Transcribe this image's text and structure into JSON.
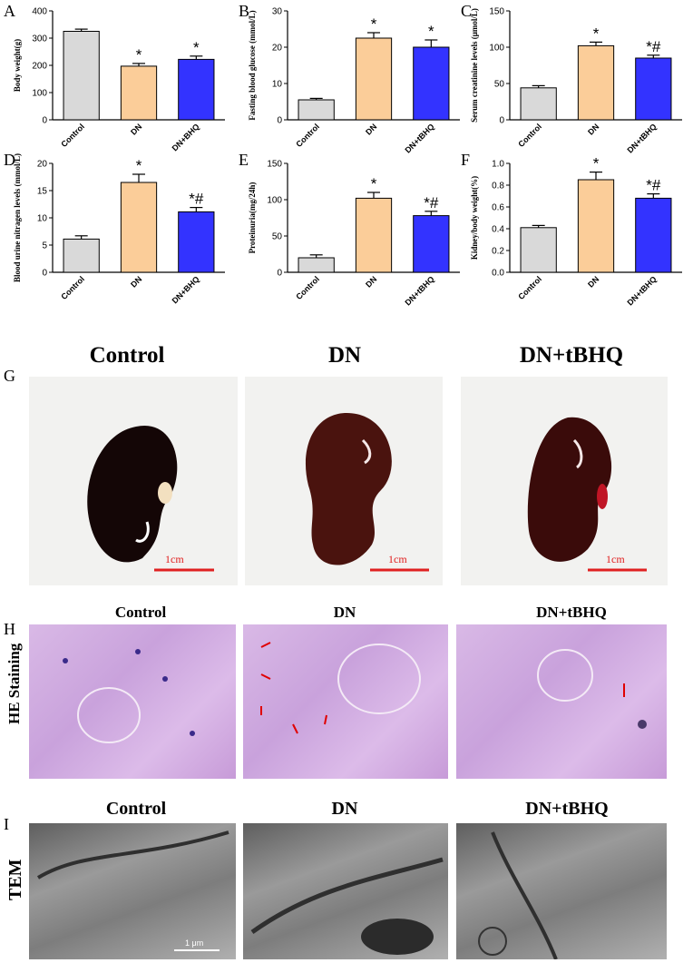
{
  "panels": {
    "A": "A",
    "B": "B",
    "C": "C",
    "D": "D",
    "E": "E",
    "F": "F",
    "G": "G",
    "H": "H",
    "I": "I"
  },
  "colors": {
    "control": "#d9d9d9",
    "dn": "#fbcd99",
    "dn_tbhq": "#3333ff"
  },
  "chart_data": [
    {
      "id": "A",
      "type": "bar",
      "categories": [
        "Control",
        "DN",
        "DN+BHQ"
      ],
      "values": [
        325,
        197,
        222
      ],
      "errors": [
        8,
        10,
        12
      ],
      "ylabel": "Body weight(g)",
      "ylim": [
        0,
        400
      ],
      "yticks": [
        "0",
        "100",
        "200",
        "300",
        "400"
      ],
      "marks": [
        "",
        "*",
        "*"
      ]
    },
    {
      "id": "B",
      "type": "bar",
      "categories": [
        "Control",
        "DN",
        "DN+tBHQ"
      ],
      "values": [
        5.5,
        22.5,
        20
      ],
      "errors": [
        0.4,
        1.5,
        2
      ],
      "ylabel": "Fasting blood glucose (mmol/L)",
      "ylim": [
        0,
        30
      ],
      "yticks": [
        "0",
        "10",
        "20",
        "30"
      ],
      "marks": [
        "",
        "*",
        "*"
      ]
    },
    {
      "id": "C",
      "type": "bar",
      "categories": [
        "Control",
        "DN",
        "DN+tBHQ"
      ],
      "values": [
        44,
        102,
        85
      ],
      "errors": [
        3,
        5,
        4
      ],
      "ylabel": "Serum creatinine levels (μmol/L)",
      "ylim": [
        0,
        150
      ],
      "yticks": [
        "0",
        "50",
        "100",
        "150"
      ],
      "marks": [
        "",
        "*",
        "*#"
      ]
    },
    {
      "id": "D",
      "type": "bar",
      "categories": [
        "Control",
        "DN",
        "DN+BHQ"
      ],
      "values": [
        6.1,
        16.5,
        11.1
      ],
      "errors": [
        0.6,
        1.5,
        0.8
      ],
      "ylabel": "Blood urine nitragen levels (mmol/L)",
      "ylim": [
        0,
        20
      ],
      "yticks": [
        "0",
        "5",
        "10",
        "15",
        "20"
      ],
      "marks": [
        "",
        "*",
        "*#"
      ]
    },
    {
      "id": "E",
      "type": "bar",
      "categories": [
        "Control",
        "DN",
        "DN+tBHQ"
      ],
      "values": [
        20,
        102,
        78
      ],
      "errors": [
        4,
        8,
        6
      ],
      "ylabel": "Proteinuria(mg/24h)",
      "ylim": [
        0,
        150
      ],
      "yticks": [
        "0",
        "50",
        "100",
        "150"
      ],
      "marks": [
        "",
        "*",
        "*#"
      ]
    },
    {
      "id": "F",
      "type": "bar",
      "categories": [
        "Control",
        "DN",
        "DN+tBHQ"
      ],
      "values": [
        0.41,
        0.85,
        0.68
      ],
      "errors": [
        0.02,
        0.07,
        0.04
      ],
      "ylabel": "Kidney/body weight(%)",
      "ylim": [
        0,
        1.0
      ],
      "yticks": [
        "0.0",
        "0.2",
        "0.4",
        "0.6",
        "0.8",
        "1.0"
      ],
      "marks": [
        "",
        "*",
        "*#"
      ]
    }
  ],
  "photos": {
    "groups": [
      "Control",
      "DN",
      "DN+tBHQ"
    ],
    "scale_bar": "1cm",
    "he_label": "HE Staining",
    "tem_label": "TEM",
    "tem_scale": "1 μm"
  }
}
